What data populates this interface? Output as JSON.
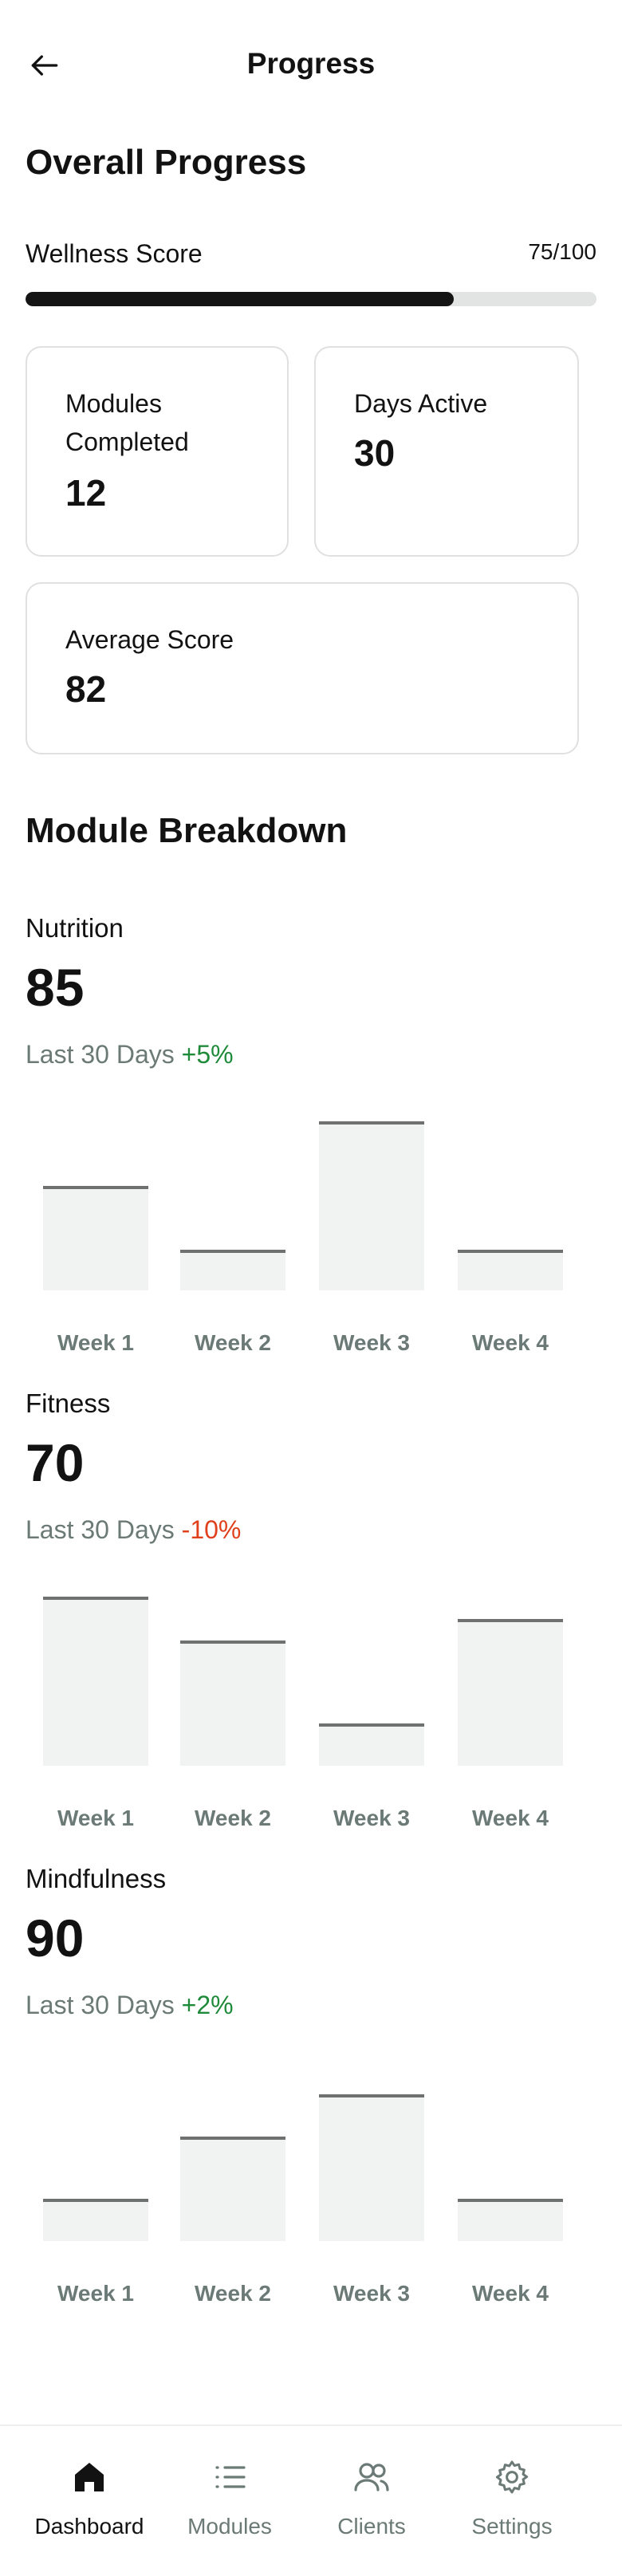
{
  "header": {
    "title": "Progress"
  },
  "overall": {
    "title": "Overall Progress",
    "wellness_label": "Wellness Score",
    "wellness_value": "75/100",
    "wellness_fraction": 0.75
  },
  "stats": {
    "modules_completed_label": "Modules\nCompleted",
    "modules_completed_value": "12",
    "days_active_label": "Days Active",
    "days_active_value": "30",
    "average_score_label": "Average Score",
    "average_score_value": "82"
  },
  "breakdown": {
    "title": "Module Breakdown",
    "trend_prefix": "Last 30 Days",
    "weeks": [
      "Week 1",
      "Week 2",
      "Week 3",
      "Week 4"
    ],
    "modules": [
      {
        "name": "Nutrition",
        "score": "85",
        "change": "+5%",
        "direction": "up",
        "bars": [
          0.62,
          0.24,
          1.0,
          0.24
        ]
      },
      {
        "name": "Fitness",
        "score": "70",
        "change": "-10%",
        "direction": "down",
        "bars": [
          1.0,
          0.74,
          0.25,
          0.87
        ]
      },
      {
        "name": "Mindfulness",
        "score": "90",
        "change": "+2%",
        "direction": "up",
        "bars": [
          0.25,
          0.62,
          0.87,
          0.25
        ]
      }
    ]
  },
  "colors": {
    "positive": "#1f8a3a",
    "negative": "#e0401b",
    "muted": "#6b7a76",
    "progress_fill": "#141414"
  },
  "nav": {
    "items": [
      {
        "label": "Dashboard",
        "icon": "home-icon",
        "active": true
      },
      {
        "label": "Modules",
        "icon": "list-icon",
        "active": false
      },
      {
        "label": "Clients",
        "icon": "users-icon",
        "active": false
      },
      {
        "label": "Settings",
        "icon": "gear-icon",
        "active": false
      }
    ]
  }
}
